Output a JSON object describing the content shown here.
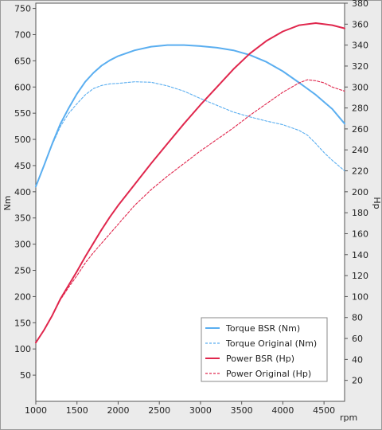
{
  "chart_data": {
    "type": "line",
    "xlabel": "rpm",
    "ylabel_left": "Nm",
    "ylabel_right": "Hp",
    "xlim": [
      1000,
      4750
    ],
    "ylim_left": [
      0,
      760
    ],
    "ylim_right": [
      0,
      380
    ],
    "x_ticks": [
      1000,
      1500,
      2000,
      2500,
      3000,
      3500,
      4000,
      4500
    ],
    "y_ticks_left": [
      50,
      100,
      150,
      200,
      250,
      300,
      350,
      400,
      450,
      500,
      550,
      600,
      650,
      700,
      750
    ],
    "y_ticks_right": [
      20,
      40,
      60,
      80,
      100,
      120,
      140,
      160,
      180,
      200,
      220,
      240,
      260,
      280,
      300,
      320,
      340,
      360,
      380
    ],
    "legend_position": "bottom-right",
    "grid": false,
    "series": [
      {
        "name": "Torque BSR (Nm)",
        "axis": "left",
        "style": "solid",
        "color": "#5aaef0",
        "x": [
          1000,
          1100,
          1200,
          1300,
          1400,
          1500,
          1600,
          1700,
          1800,
          1900,
          2000,
          2200,
          2400,
          2600,
          2800,
          3000,
          3200,
          3400,
          3600,
          3800,
          4000,
          4200,
          4400,
          4600,
          4750
        ],
        "values": [
          410,
          450,
          492,
          530,
          560,
          587,
          610,
          627,
          641,
          651,
          659,
          670,
          677,
          680,
          680,
          678,
          675,
          670,
          661,
          648,
          630,
          608,
          585,
          558,
          530
        ]
      },
      {
        "name": "Torque Original (Nm)",
        "axis": "left",
        "style": "dashed",
        "color": "#5aaef0",
        "x": [
          1000,
          1100,
          1200,
          1300,
          1400,
          1500,
          1600,
          1700,
          1800,
          1900,
          2000,
          2200,
          2400,
          2600,
          2800,
          3000,
          3200,
          3400,
          3600,
          3800,
          4000,
          4200,
          4300,
          4400,
          4500,
          4600,
          4750
        ],
        "values": [
          410,
          450,
          490,
          525,
          550,
          568,
          585,
          597,
          603,
          606,
          607,
          610,
          609,
          602,
          592,
          578,
          565,
          552,
          543,
          535,
          528,
          517,
          508,
          492,
          475,
          460,
          440
        ]
      },
      {
        "name": "Power BSR (Hp)",
        "axis": "right",
        "style": "solid",
        "color": "#e0274d",
        "x": [
          1000,
          1100,
          1200,
          1300,
          1400,
          1500,
          1600,
          1700,
          1800,
          1900,
          2000,
          2200,
          2400,
          2600,
          2800,
          3000,
          3200,
          3400,
          3600,
          3800,
          4000,
          4200,
          4400,
          4600,
          4750
        ],
        "values": [
          56,
          68,
          82,
          98,
          111,
          124,
          138,
          151,
          164,
          176,
          187,
          207,
          227,
          246,
          265,
          283,
          300,
          317,
          332,
          344,
          353,
          359,
          361,
          359,
          356
        ]
      },
      {
        "name": "Power Original (Hp)",
        "axis": "right",
        "style": "dashed",
        "color": "#e0274d",
        "x": [
          1000,
          1100,
          1200,
          1300,
          1400,
          1500,
          1600,
          1700,
          1800,
          1900,
          2000,
          2200,
          2400,
          2600,
          2800,
          3000,
          3200,
          3400,
          3600,
          3800,
          4000,
          4200,
          4300,
          4400,
          4500,
          4600,
          4750
        ],
        "values": [
          56,
          68,
          82,
          97,
          109,
          120,
          132,
          142,
          151,
          160,
          169,
          187,
          202,
          215,
          227,
          239,
          250,
          261,
          273,
          284,
          295,
          304,
          307,
          306,
          304,
          300,
          296
        ]
      }
    ]
  }
}
